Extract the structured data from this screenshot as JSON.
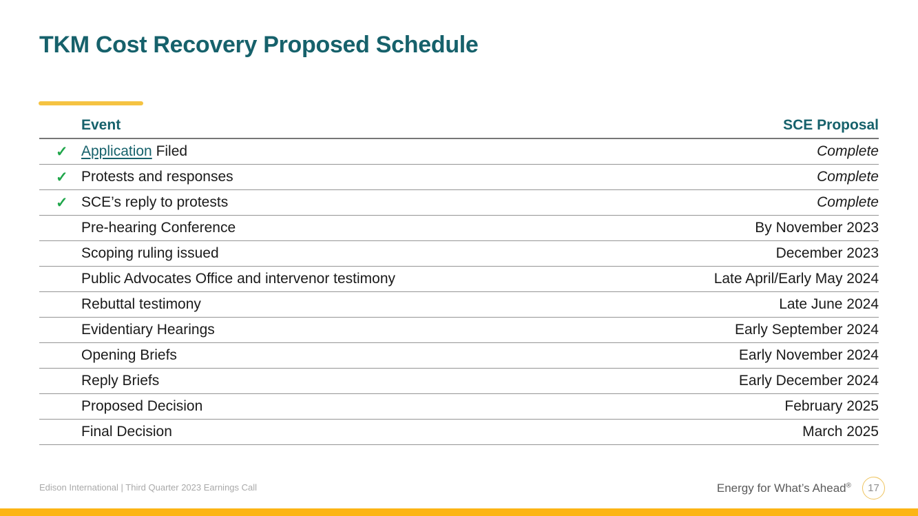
{
  "slide": {
    "title": "TKM Cost Recovery Proposed Schedule",
    "colors": {
      "teal": "#16616B",
      "accent_gold": "#F5C342",
      "bottom_bar_gold": "#FCB515",
      "check_green": "#1FA64A",
      "row_line_gray": "#949494"
    }
  },
  "table": {
    "headers": {
      "event": "Event",
      "proposal": "SCE Proposal"
    },
    "check_glyph": "✓",
    "rows": [
      {
        "checked": true,
        "event_link": "Application",
        "event_rest": " Filed",
        "proposal": "Complete",
        "italic": true
      },
      {
        "checked": true,
        "event": "Protests and responses",
        "proposal": "Complete",
        "italic": true
      },
      {
        "checked": true,
        "event": "SCE’s reply to protests",
        "proposal": "Complete",
        "italic": true
      },
      {
        "checked": false,
        "event": "Pre-hearing Conference",
        "proposal": "By November 2023",
        "italic": false
      },
      {
        "checked": false,
        "event": "Scoping ruling issued",
        "proposal": "December 2023",
        "italic": false
      },
      {
        "checked": false,
        "event": "Public Advocates Office and intervenor testimony",
        "proposal": "Late April/Early May 2024",
        "italic": false
      },
      {
        "checked": false,
        "event": "Rebuttal testimony",
        "proposal": "Late June 2024",
        "italic": false
      },
      {
        "checked": false,
        "event": "Evidentiary Hearings",
        "proposal": "Early September 2024",
        "italic": false
      },
      {
        "checked": false,
        "event": "Opening Briefs",
        "proposal": "Early November 2024",
        "italic": false
      },
      {
        "checked": false,
        "event": "Reply Briefs",
        "proposal": "Early December 2024",
        "italic": false
      },
      {
        "checked": false,
        "event": "Proposed Decision",
        "proposal": "February 2025",
        "italic": false
      },
      {
        "checked": false,
        "event": "Final Decision",
        "proposal": "March 2025",
        "italic": false
      }
    ]
  },
  "footer": {
    "left_text": "Edison International | Third Quarter 2023 Earnings Call",
    "tagline": "Energy for What’s Ahead",
    "tagline_mark": "®",
    "page_number": "17"
  }
}
